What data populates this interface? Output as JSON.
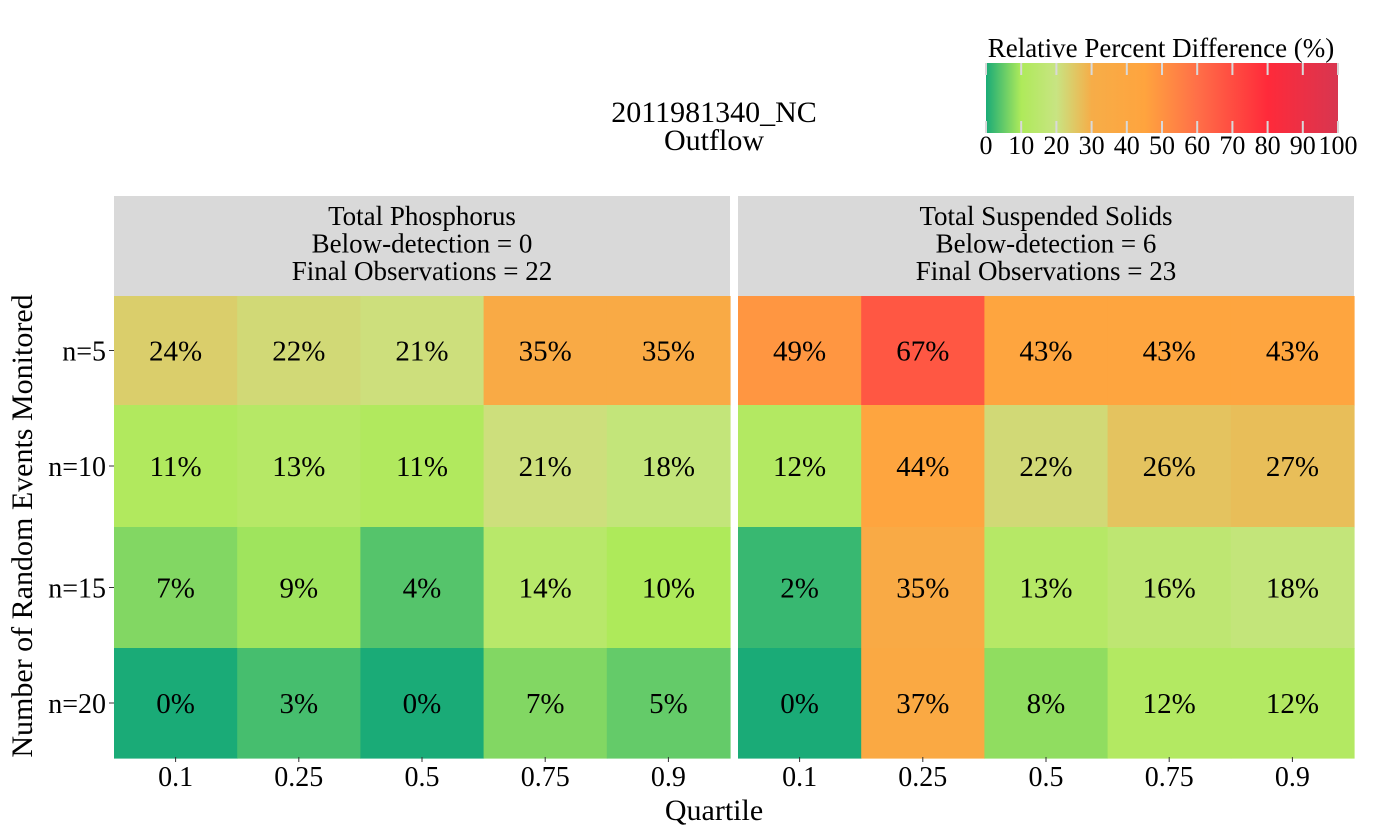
{
  "chart_data": {
    "type": "heatmap",
    "title": [
      "2011981340_NC",
      "Outflow"
    ],
    "xlabel": "Quartile",
    "ylabel": "Number of Random Events Monitored",
    "x_categories": [
      "0.1",
      "0.25",
      "0.5",
      "0.75",
      "0.9"
    ],
    "y_categories": [
      "n=5",
      "n=10",
      "n=15",
      "n=20"
    ],
    "legend": {
      "title": "Relative Percent Difference (%)",
      "ticks": [
        "0",
        "10",
        "20",
        "30",
        "40",
        "50",
        "60",
        "70",
        "80",
        "90",
        "100"
      ],
      "range": [
        0,
        100
      ],
      "placement": "top-right"
    },
    "color_stops": [
      {
        "value": 0,
        "color": "#1aab77"
      },
      {
        "value": 10,
        "color": "#aeea5a"
      },
      {
        "value": 20,
        "color": "#c8e482"
      },
      {
        "value": 30,
        "color": "#f6ad48"
      },
      {
        "value": 45,
        "color": "#ffa43e"
      },
      {
        "value": 60,
        "color": "#ff6f48"
      },
      {
        "value": 80,
        "color": "#ff2a3a"
      },
      {
        "value": 100,
        "color": "#d83650"
      }
    ],
    "panels": [
      {
        "strip": [
          "Total Phosphorus",
          "Below-detection = 0",
          "Final Observations = 22"
        ],
        "values": [
          [
            24,
            22,
            21,
            35,
            35
          ],
          [
            11,
            13,
            11,
            21,
            18
          ],
          [
            7,
            9,
            4,
            14,
            10
          ],
          [
            0,
            3,
            0,
            7,
            5
          ]
        ],
        "labels": [
          [
            "24%",
            "22%",
            "21%",
            "35%",
            "35%"
          ],
          [
            "11%",
            "13%",
            "11%",
            "21%",
            "18%"
          ],
          [
            "7%",
            "9%",
            "4%",
            "14%",
            "10%"
          ],
          [
            "0%",
            "3%",
            "0%",
            "7%",
            "5%"
          ]
        ]
      },
      {
        "strip": [
          "Total Suspended Solids",
          "Below-detection = 6",
          "Final Observations = 23"
        ],
        "values": [
          [
            49,
            67,
            43,
            43,
            43
          ],
          [
            12,
            44,
            22,
            26,
            27
          ],
          [
            2,
            35,
            13,
            16,
            18
          ],
          [
            0,
            37,
            8,
            12,
            12
          ]
        ],
        "labels": [
          [
            "49%",
            "67%",
            "43%",
            "43%",
            "43%"
          ],
          [
            "12%",
            "44%",
            "22%",
            "26%",
            "27%"
          ],
          [
            "2%",
            "35%",
            "13%",
            "16%",
            "18%"
          ],
          [
            "0%",
            "37%",
            "8%",
            "12%",
            "12%"
          ]
        ]
      }
    ]
  }
}
